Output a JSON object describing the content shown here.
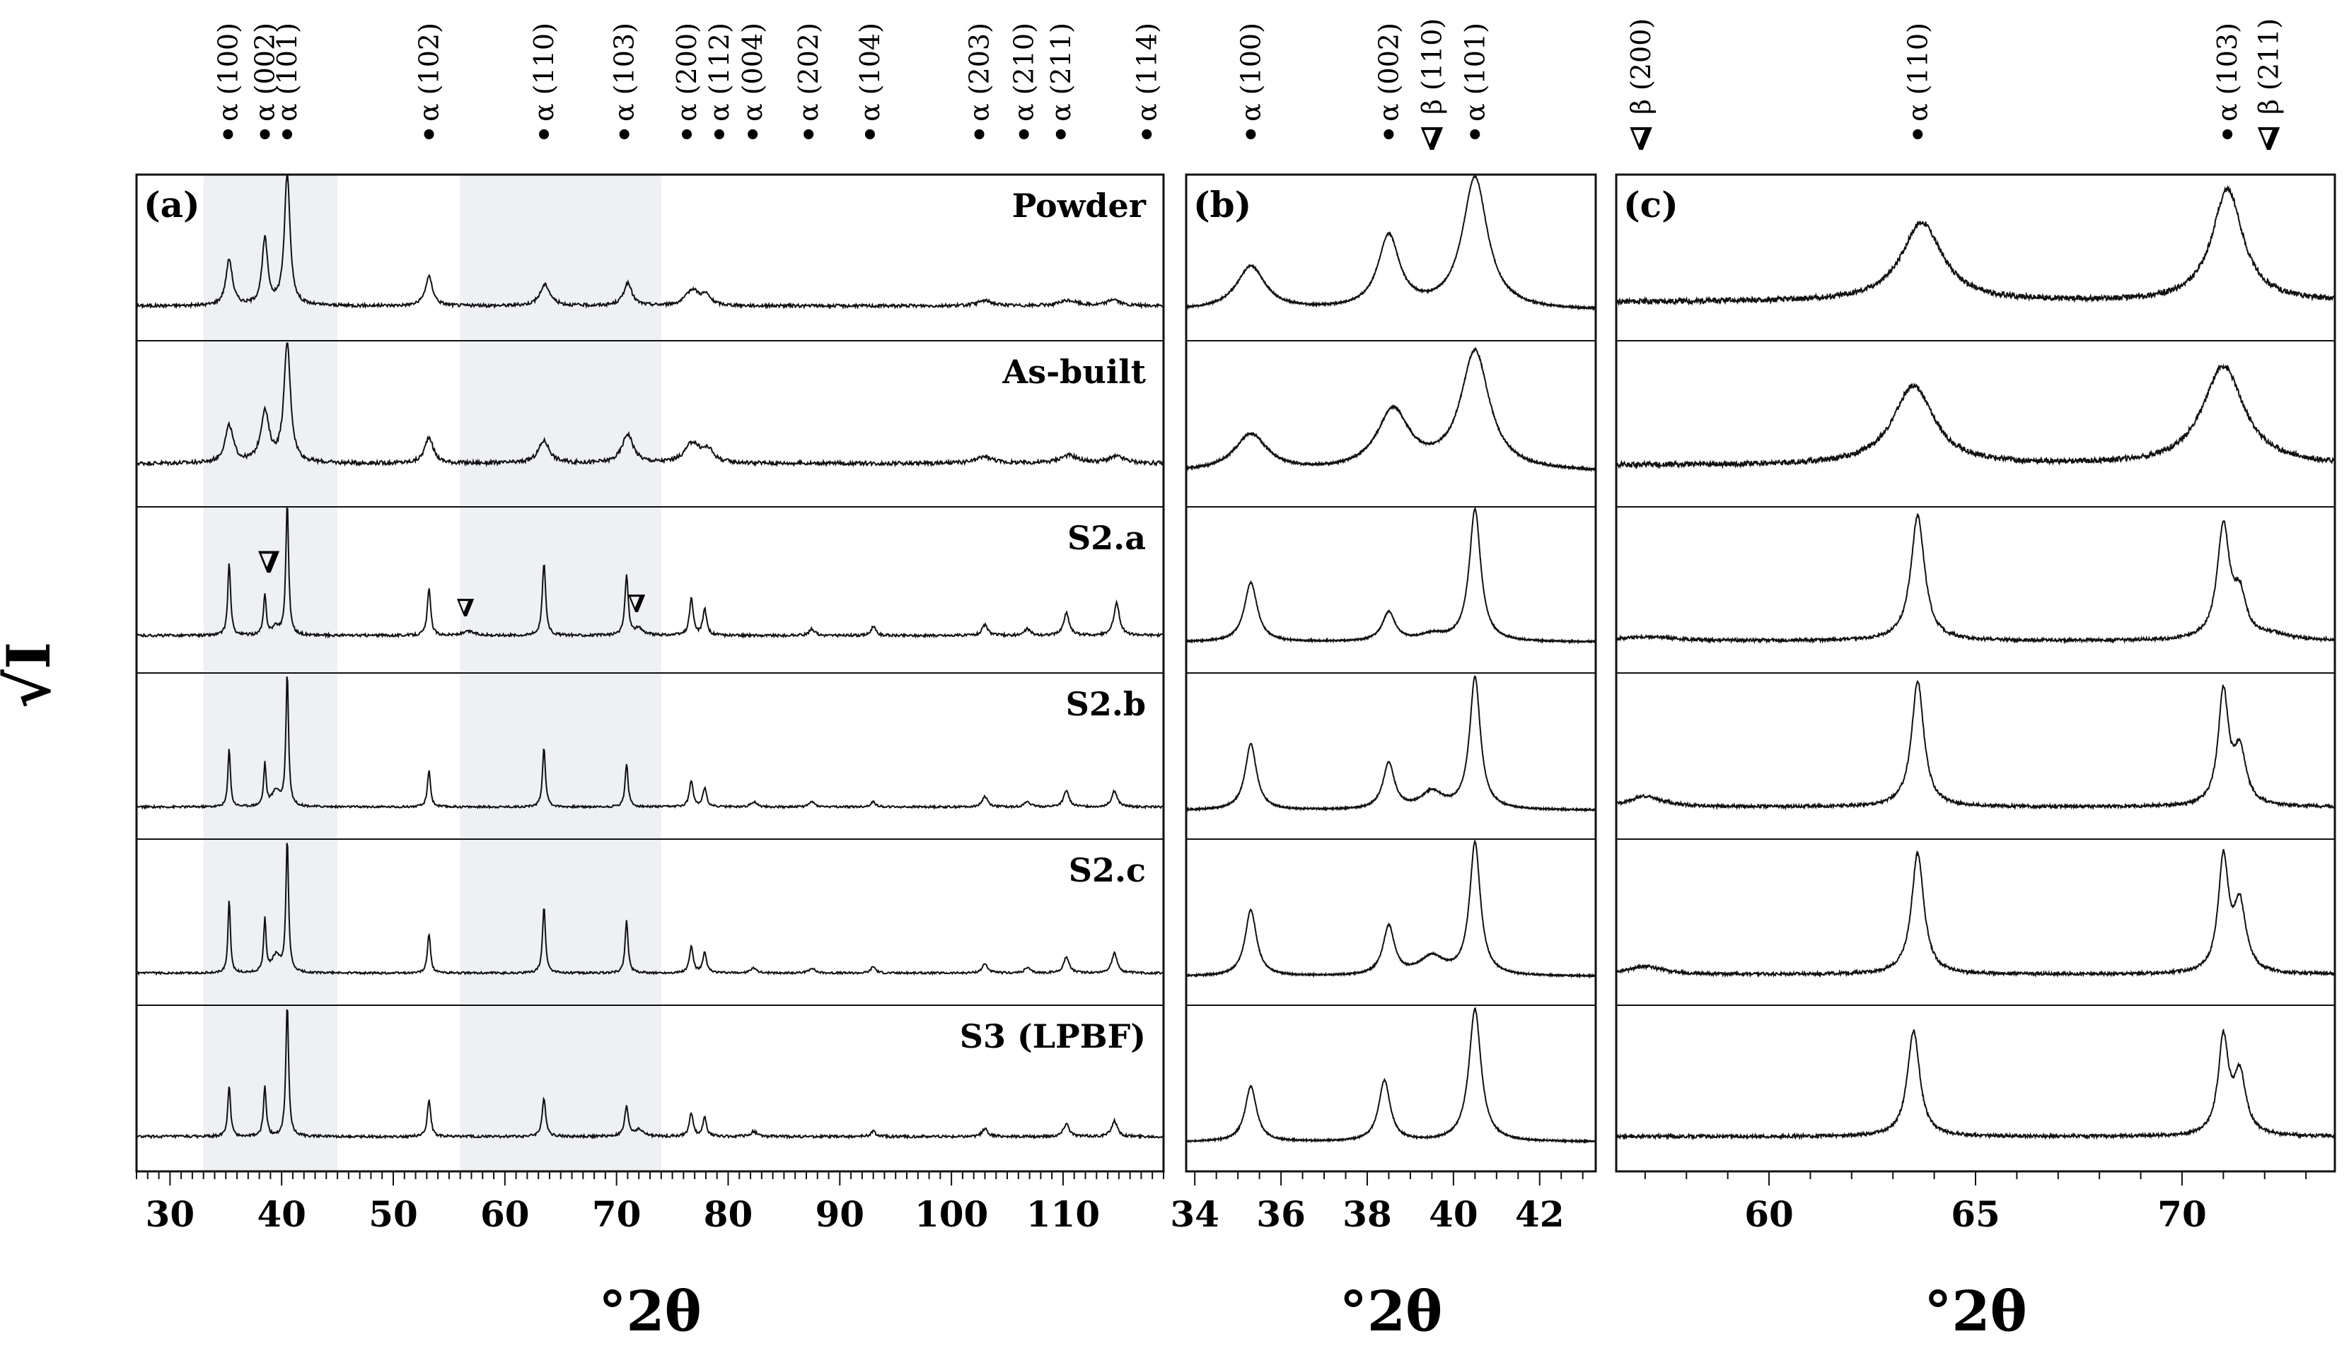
{
  "figure": {
    "ylabel": "√I"
  },
  "samples": [
    "Powder",
    "As-built",
    "S2.a",
    "S2.b",
    "S2.c",
    "S3 (LPBF)"
  ],
  "chart_data": [
    {
      "id": "a",
      "label": "(a)",
      "type": "line",
      "xlabel": "°2θ",
      "ylabel": "√I",
      "xlim": [
        27,
        119
      ],
      "xticks": [
        30,
        40,
        50,
        60,
        70,
        80,
        90,
        100,
        110
      ],
      "shaded_ranges": [
        [
          33,
          45
        ],
        [
          56,
          74
        ]
      ],
      "reflections": [
        {
          "pos": 35.2,
          "marker": "•",
          "label": "α (100)"
        },
        {
          "pos": 38.5,
          "marker": "•",
          "label": "α (002)"
        },
        {
          "pos": 40.5,
          "marker": "•",
          "label": "α (101)"
        },
        {
          "pos": 53.2,
          "marker": "•",
          "label": "α (102)"
        },
        {
          "pos": 63.5,
          "marker": "•",
          "label": "α  (110)"
        },
        {
          "pos": 70.7,
          "marker": "•",
          "label": "α (103)"
        },
        {
          "pos": 76.3,
          "marker": "•",
          "label": "α (200)"
        },
        {
          "pos": 79.2,
          "marker": "•",
          "label": "α (112)"
        },
        {
          "pos": 82.2,
          "marker": "•",
          "label": "α (004)"
        },
        {
          "pos": 87.2,
          "marker": "•",
          "label": "α (202)"
        },
        {
          "pos": 92.7,
          "marker": "•",
          "label": "α (104)"
        },
        {
          "pos": 102.5,
          "marker": "•",
          "label": "α (203)"
        },
        {
          "pos": 106.5,
          "marker": "•",
          "label": "α (210)"
        },
        {
          "pos": 109.8,
          "marker": "•",
          "label": "α (211)"
        },
        {
          "pos": 117.5,
          "marker": "•",
          "label": "α (114)"
        }
      ],
      "series": [
        {
          "name": "Powder",
          "baseline": 0.12,
          "noise": 0.012,
          "peaks": [
            [
              35.3,
              0.35,
              0.35
            ],
            [
              38.5,
              0.5,
              0.3
            ],
            [
              40.5,
              1.0,
              0.3
            ],
            [
              53.2,
              0.22,
              0.4
            ],
            [
              63.6,
              0.16,
              0.55
            ],
            [
              71.0,
              0.17,
              0.45
            ],
            [
              76.8,
              0.12,
              0.7
            ],
            [
              78.0,
              0.07,
              0.5
            ],
            [
              103.0,
              0.04,
              0.8
            ],
            [
              110.5,
              0.04,
              1.0
            ],
            [
              114.5,
              0.05,
              0.6
            ]
          ]
        },
        {
          "name": "As-built",
          "baseline": 0.25,
          "noise": 0.015,
          "peaks": [
            [
              35.3,
              0.28,
              0.45
            ],
            [
              38.5,
              0.38,
              0.45
            ],
            [
              40.5,
              0.9,
              0.35
            ],
            [
              53.2,
              0.2,
              0.45
            ],
            [
              63.5,
              0.17,
              0.6
            ],
            [
              71.0,
              0.22,
              0.6
            ],
            [
              76.8,
              0.15,
              0.8
            ],
            [
              78.2,
              0.09,
              0.6
            ],
            [
              103.0,
              0.05,
              0.9
            ],
            [
              110.5,
              0.06,
              1.0
            ],
            [
              114.8,
              0.05,
              0.9
            ]
          ]
        },
        {
          "name": "S2.a",
          "baseline": 0.16,
          "noise": 0.01,
          "peaks": [
            [
              35.3,
              0.55,
              0.15
            ],
            [
              38.5,
              0.3,
              0.15
            ],
            [
              39.5,
              0.06,
              0.4
            ],
            [
              40.5,
              1.0,
              0.15
            ],
            [
              53.2,
              0.35,
              0.18
            ],
            [
              56.8,
              0.03,
              0.6
            ],
            [
              63.5,
              0.55,
              0.18
            ],
            [
              70.9,
              0.45,
              0.18
            ],
            [
              72.0,
              0.05,
              0.5
            ],
            [
              76.7,
              0.28,
              0.2
            ],
            [
              77.9,
              0.2,
              0.2
            ],
            [
              87.5,
              0.05,
              0.3
            ],
            [
              93.0,
              0.07,
              0.25
            ],
            [
              103.0,
              0.08,
              0.3
            ],
            [
              106.8,
              0.05,
              0.3
            ],
            [
              110.3,
              0.17,
              0.3
            ],
            [
              114.8,
              0.25,
              0.3
            ]
          ]
        },
        {
          "name": "S2.b",
          "baseline": 0.08,
          "noise": 0.008,
          "peaks": [
            [
              35.3,
              0.45,
              0.13
            ],
            [
              38.5,
              0.32,
              0.13
            ],
            [
              39.5,
              0.12,
              0.45
            ],
            [
              40.5,
              1.0,
              0.14
            ],
            [
              53.2,
              0.28,
              0.16
            ],
            [
              63.5,
              0.45,
              0.16
            ],
            [
              70.9,
              0.33,
              0.16
            ],
            [
              76.7,
              0.2,
              0.2
            ],
            [
              77.9,
              0.14,
              0.2
            ],
            [
              82.3,
              0.04,
              0.3
            ],
            [
              87.5,
              0.04,
              0.3
            ],
            [
              93.0,
              0.04,
              0.25
            ],
            [
              103.0,
              0.08,
              0.3
            ],
            [
              106.8,
              0.04,
              0.3
            ],
            [
              110.3,
              0.12,
              0.3
            ],
            [
              114.6,
              0.12,
              0.3
            ]
          ]
        },
        {
          "name": "S2.c",
          "baseline": 0.08,
          "noise": 0.008,
          "peaks": [
            [
              35.3,
              0.55,
              0.13
            ],
            [
              38.5,
              0.4,
              0.13
            ],
            [
              39.5,
              0.13,
              0.45
            ],
            [
              40.5,
              1.0,
              0.14
            ],
            [
              53.2,
              0.3,
              0.16
            ],
            [
              63.5,
              0.5,
              0.16
            ],
            [
              70.9,
              0.4,
              0.16
            ],
            [
              76.7,
              0.2,
              0.2
            ],
            [
              77.9,
              0.15,
              0.2
            ],
            [
              82.3,
              0.04,
              0.3
            ],
            [
              87.5,
              0.04,
              0.3
            ],
            [
              93.0,
              0.05,
              0.25
            ],
            [
              103.0,
              0.07,
              0.3
            ],
            [
              106.8,
              0.04,
              0.3
            ],
            [
              110.3,
              0.12,
              0.3
            ],
            [
              114.6,
              0.15,
              0.3
            ]
          ]
        },
        {
          "name": "S3 (LPBF)",
          "baseline": 0.12,
          "noise": 0.01,
          "peaks": [
            [
              35.3,
              0.38,
              0.15
            ],
            [
              38.5,
              0.38,
              0.15
            ],
            [
              40.5,
              1.0,
              0.15
            ],
            [
              53.2,
              0.28,
              0.18
            ],
            [
              63.5,
              0.28,
              0.2
            ],
            [
              70.9,
              0.22,
              0.2
            ],
            [
              72.0,
              0.05,
              0.5
            ],
            [
              76.7,
              0.18,
              0.2
            ],
            [
              77.9,
              0.14,
              0.2
            ],
            [
              82.3,
              0.04,
              0.3
            ],
            [
              93.0,
              0.04,
              0.25
            ],
            [
              103.0,
              0.06,
              0.3
            ],
            [
              110.3,
              0.1,
              0.3
            ],
            [
              114.6,
              0.12,
              0.3
            ]
          ]
        }
      ]
    },
    {
      "id": "b",
      "label": "(b)",
      "type": "line",
      "xlabel": "°2θ",
      "xlim": [
        33.8,
        43.3
      ],
      "xticks": [
        34,
        36,
        38,
        40,
        42
      ],
      "reflections": [
        {
          "pos": 35.3,
          "marker": "•",
          "label": "α (100)"
        },
        {
          "pos": 38.5,
          "marker": "•",
          "label": "α (002)"
        },
        {
          "pos": 39.5,
          "marker": "∇",
          "label": "β (110)"
        },
        {
          "pos": 40.5,
          "marker": "•",
          "label": "α (101)"
        }
      ],
      "series": [
        {
          "name": "Powder",
          "baseline": 0.05,
          "noise": 0.006,
          "peaks": [
            [
              35.3,
              0.33,
              0.4
            ],
            [
              38.5,
              0.55,
              0.3
            ],
            [
              40.5,
              1.0,
              0.35
            ]
          ]
        },
        {
          "name": "As-built",
          "baseline": 0.12,
          "noise": 0.008,
          "peaks": [
            [
              35.3,
              0.28,
              0.45
            ],
            [
              38.6,
              0.45,
              0.45
            ],
            [
              40.5,
              0.9,
              0.4
            ]
          ]
        },
        {
          "name": "S2.a",
          "baseline": 0.06,
          "noise": 0.005,
          "peaks": [
            [
              35.3,
              0.45,
              0.18
            ],
            [
              38.5,
              0.22,
              0.18
            ],
            [
              39.5,
              0.05,
              0.35
            ],
            [
              40.5,
              1.0,
              0.16
            ]
          ]
        },
        {
          "name": "S2.b",
          "baseline": 0.03,
          "noise": 0.005,
          "peaks": [
            [
              35.3,
              0.5,
              0.16
            ],
            [
              38.5,
              0.35,
              0.16
            ],
            [
              39.5,
              0.13,
              0.3
            ],
            [
              40.5,
              1.0,
              0.15
            ]
          ]
        },
        {
          "name": "S2.c",
          "baseline": 0.03,
          "noise": 0.005,
          "peaks": [
            [
              35.3,
              0.5,
              0.16
            ],
            [
              38.5,
              0.37,
              0.16
            ],
            [
              39.5,
              0.14,
              0.35
            ],
            [
              40.5,
              1.0,
              0.15
            ]
          ]
        },
        {
          "name": "S3 (LPBF)",
          "baseline": 0.04,
          "noise": 0.005,
          "peaks": [
            [
              35.3,
              0.42,
              0.16
            ],
            [
              38.4,
              0.46,
              0.16
            ],
            [
              40.5,
              1.0,
              0.17
            ]
          ]
        }
      ]
    },
    {
      "id": "c",
      "label": "(c)",
      "type": "line",
      "xlabel": "°2θ",
      "xlim": [
        56.3,
        73.7
      ],
      "xticks": [
        60,
        65,
        70
      ],
      "reflections": [
        {
          "pos": 56.9,
          "marker": "∇",
          "label": "β (200)"
        },
        {
          "pos": 63.6,
          "marker": "•",
          "label": "α  (110)"
        },
        {
          "pos": 71.1,
          "marker": "•",
          "label": "α (103)"
        },
        {
          "pos": 72.1,
          "marker": "∇",
          "label": "β (211)"
        }
      ],
      "series": [
        {
          "name": "Powder",
          "baseline": 0.18,
          "noise": 0.02,
          "peaks": [
            [
              63.7,
              0.6,
              0.6
            ],
            [
              71.1,
              0.85,
              0.45
            ]
          ]
        },
        {
          "name": "As-built",
          "baseline": 0.22,
          "noise": 0.02,
          "peaks": [
            [
              63.5,
              0.6,
              0.6
            ],
            [
              71.0,
              0.75,
              0.6
            ]
          ]
        },
        {
          "name": "S2.a",
          "baseline": 0.08,
          "noise": 0.012,
          "peaks": [
            [
              57.0,
              0.03,
              0.8
            ],
            [
              63.6,
              0.95,
              0.2
            ],
            [
              71.0,
              0.85,
              0.18
            ],
            [
              71.4,
              0.3,
              0.18
            ],
            [
              72.2,
              0.04,
              0.5
            ]
          ]
        },
        {
          "name": "S2.b",
          "baseline": 0.08,
          "noise": 0.012,
          "peaks": [
            [
              57.0,
              0.08,
              0.5
            ],
            [
              63.6,
              0.95,
              0.18
            ],
            [
              71.0,
              0.85,
              0.15
            ],
            [
              71.4,
              0.4,
              0.18
            ]
          ]
        },
        {
          "name": "S2.c",
          "baseline": 0.06,
          "noise": 0.012,
          "peaks": [
            [
              57.0,
              0.06,
              0.5
            ],
            [
              63.6,
              0.92,
              0.18
            ],
            [
              71.0,
              0.85,
              0.15
            ],
            [
              71.4,
              0.5,
              0.18
            ]
          ]
        },
        {
          "name": "S3 (LPBF)",
          "baseline": 0.12,
          "noise": 0.012,
          "peaks": [
            [
              63.5,
              0.8,
              0.18
            ],
            [
              71.0,
              0.72,
              0.15
            ],
            [
              71.4,
              0.45,
              0.18
            ]
          ]
        }
      ]
    }
  ]
}
